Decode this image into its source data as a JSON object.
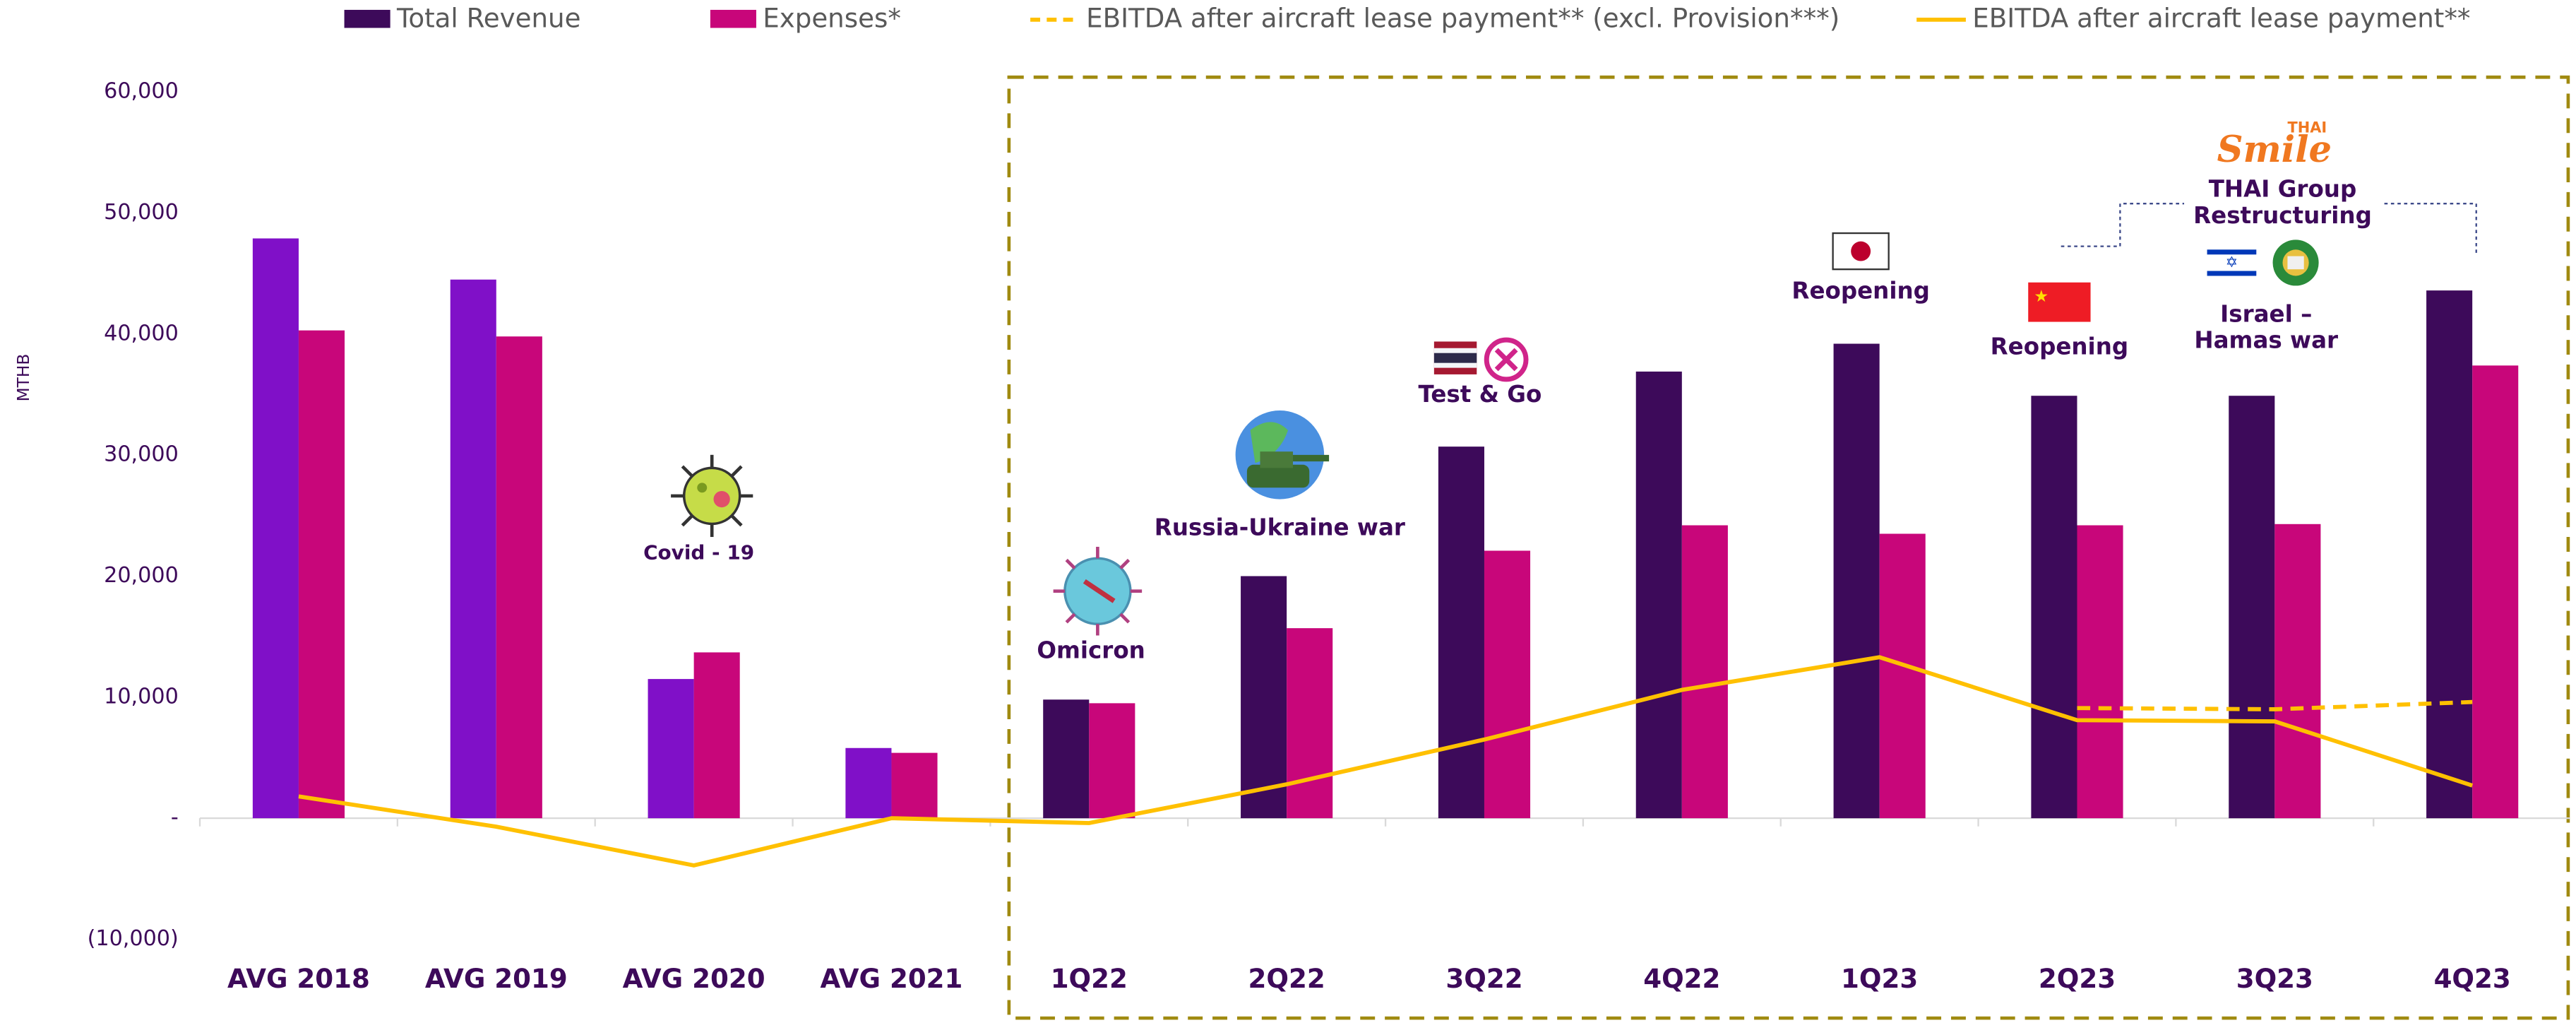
{
  "chart_data": {
    "type": "bar",
    "y_label": "MTHB",
    "categories": [
      "AVG 2018",
      "AVG 2019",
      "AVG 2020",
      "AVG 2021",
      "1Q22",
      "2Q22",
      "3Q22",
      "4Q22",
      "1Q23",
      "2Q23",
      "3Q23",
      "4Q23"
    ],
    "series": [
      {
        "name": "Total Revenue",
        "type": "bar",
        "color": "#3d0a5a",
        "colors": [
          "#8010c8",
          "#8010c8",
          "#8010c8",
          "#8010c8",
          "#3d0a5a",
          "#3d0a5a",
          "#3d0a5a",
          "#3d0a5a",
          "#3d0a5a",
          "#3d0a5a",
          "#3d0a5a",
          "#3d0a5a"
        ],
        "values": [
          47900,
          44500,
          11500,
          5800,
          9800,
          20000,
          30700,
          36900,
          39200,
          34900,
          34900,
          43600
        ]
      },
      {
        "name": "Expenses*",
        "type": "bar",
        "color": "#c8067a",
        "values": [
          40300,
          39800,
          13700,
          5400,
          9500,
          15700,
          22100,
          24200,
          23500,
          24200,
          24300,
          37400
        ]
      },
      {
        "name": "EBITDA after aircraft lease payment** (excl. Provision***)",
        "type": "line",
        "dashed": true,
        "color": "#ffc000",
        "values": [
          null,
          null,
          null,
          null,
          null,
          null,
          null,
          null,
          null,
          9100,
          9000,
          9600
        ]
      },
      {
        "name": "EBITDA after aircraft lease payment**",
        "type": "line",
        "dashed": false,
        "color": "#ffc000",
        "values": [
          1800,
          -700,
          -3900,
          0,
          -400,
          2800,
          6500,
          10600,
          13300,
          8100,
          8000,
          2700
        ]
      }
    ],
    "ylim": [
      -10000,
      60000
    ],
    "yticks": [
      {
        "value": -10000,
        "label": "(10,000)"
      },
      {
        "value": 0,
        "label": "-"
      },
      {
        "value": 10000,
        "label": "10,000"
      },
      {
        "value": 20000,
        "label": "20,000"
      },
      {
        "value": 30000,
        "label": "30,000"
      },
      {
        "value": 40000,
        "label": "40,000"
      },
      {
        "value": 50000,
        "label": "50,000"
      },
      {
        "value": 60000,
        "label": "60,000"
      }
    ],
    "grid": false,
    "legend": "top",
    "annotations": [
      "Covid - 19",
      "Omicron",
      "Russia-Ukraine  war",
      "Test & Go",
      "Reopening",
      "Reopening",
      "Israel –",
      "Hamas war",
      "THAI Group",
      "Restructuring",
      "Smile",
      "THAI"
    ]
  }
}
